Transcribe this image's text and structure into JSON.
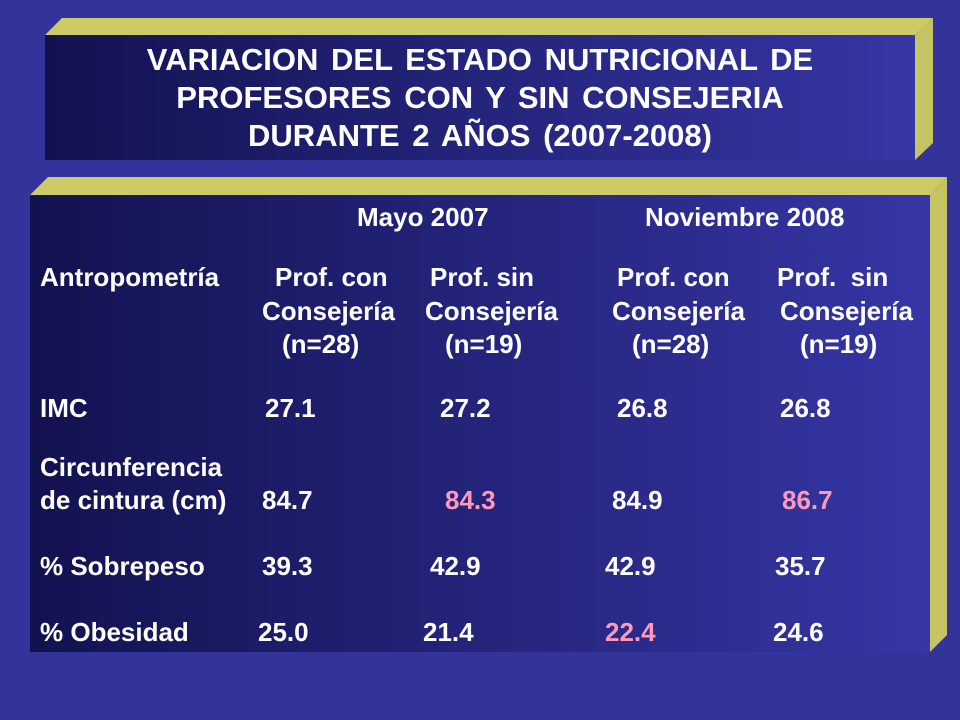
{
  "title": {
    "lines": [
      "VARIACION DEL ESTADO NUTRICIONAL DE",
      "PROFESORES CON Y SIN CONSEJERIA",
      "DURANTE 2 AÑOS (2007-2008)"
    ]
  },
  "table": {
    "periods": [
      "Mayo 2007",
      "Noviembre 2008"
    ],
    "row_header_label": "Antropometría",
    "columns": [
      {
        "group": "Prof. con",
        "sub": "Consejería",
        "n": "(n=28)"
      },
      {
        "group": "Prof. sin",
        "sub": "Consejería",
        "n": "(n=19)"
      },
      {
        "group": "Prof. con",
        "sub": "Consejería",
        "n": "(n=28)"
      },
      {
        "group": "Prof.  sin",
        "sub": "Consejería",
        "n": "(n=19)"
      }
    ],
    "rows": [
      {
        "label_lines": [
          "IMC"
        ],
        "values": [
          "27.1",
          "27.2",
          "26.8",
          "26.8"
        ],
        "highlight": [
          false,
          false,
          false,
          false
        ]
      },
      {
        "label_lines": [
          "Circunferencia",
          "de cintura (cm)"
        ],
        "values": [
          "84.7",
          "84.3",
          "84.9",
          "86.7"
        ],
        "highlight": [
          false,
          true,
          false,
          true
        ]
      },
      {
        "label_lines": [
          "% Sobrepeso"
        ],
        "values": [
          "39.3",
          "42.9",
          "42.9",
          "35.7"
        ],
        "highlight": [
          false,
          false,
          false,
          false
        ]
      },
      {
        "label_lines": [
          "% Obesidad"
        ],
        "values": [
          "25.0",
          "21.4",
          "22.4",
          "24.6"
        ],
        "highlight": [
          false,
          false,
          true,
          false
        ]
      }
    ]
  },
  "colors": {
    "background": "#333399",
    "panel_dark": "#121250",
    "panel_light": "#3636A6",
    "bevel_top": "#CCCC66",
    "bevel_side": "#C4C462",
    "text": "#FFFFFF",
    "highlight": "#FF99BB"
  }
}
